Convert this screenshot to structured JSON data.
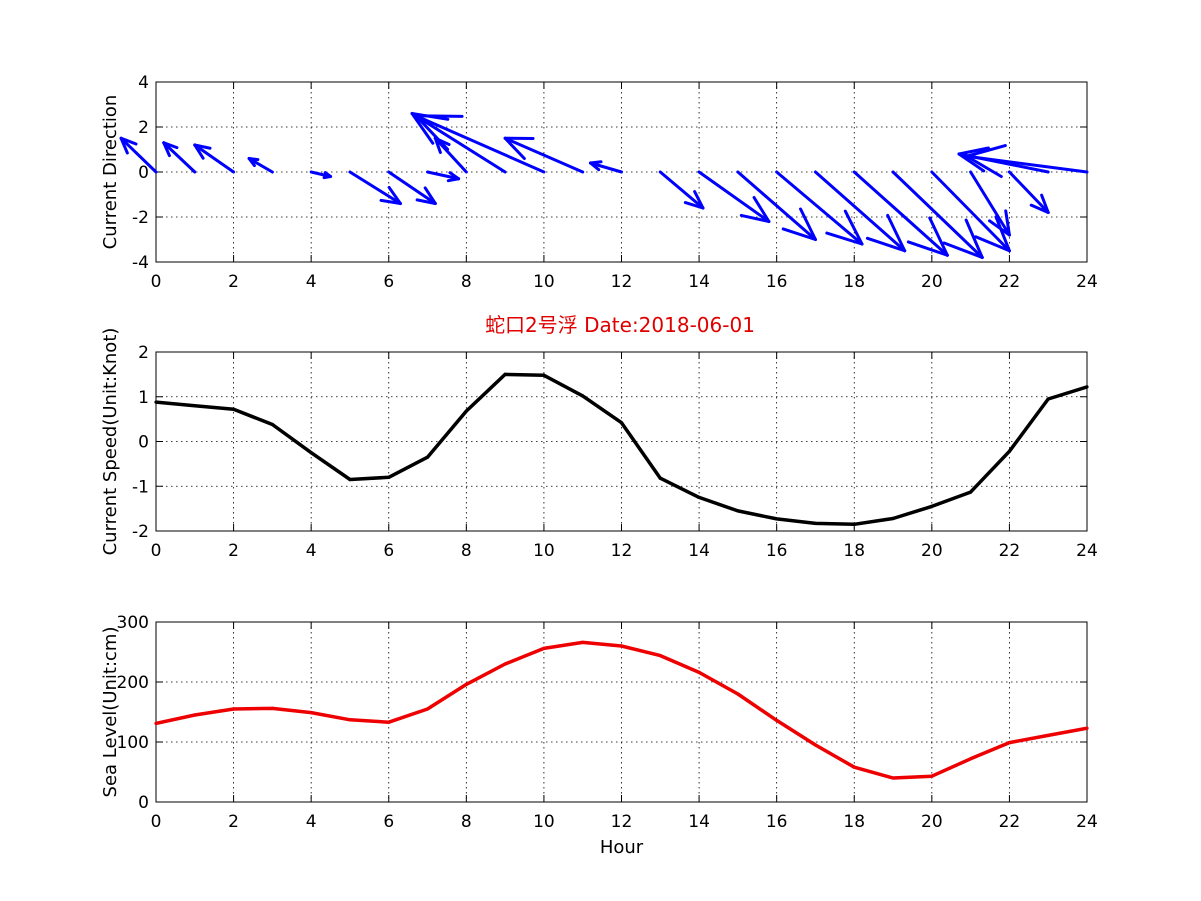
{
  "figure": {
    "title": "蛇口2号浮   Date:2018-06-01",
    "title_color": "#e00000"
  },
  "chart_data": [
    {
      "type": "quiver",
      "name": "current-direction",
      "ylabel": "Current Direction",
      "xlabel": "",
      "xlim": [
        0,
        24
      ],
      "ylim": [
        -4,
        4
      ],
      "xticks": [
        0,
        2,
        4,
        6,
        8,
        10,
        12,
        14,
        16,
        18,
        20,
        22,
        24
      ],
      "yticks": [
        -4,
        -2,
        0,
        2,
        4
      ],
      "grid": true,
      "color": "#0000ff",
      "arrows": [
        {
          "x": 0,
          "u": -0.9,
          "v": 1.5
        },
        {
          "x": 1,
          "u": -0.8,
          "v": 1.3
        },
        {
          "x": 2,
          "u": -1.0,
          "v": 1.2
        },
        {
          "x": 3,
          "u": -0.6,
          "v": 0.6
        },
        {
          "x": 4,
          "u": 0.5,
          "v": -0.2
        },
        {
          "x": 5,
          "u": 1.3,
          "v": -1.4
        },
        {
          "x": 6,
          "u": 1.2,
          "v": -1.4
        },
        {
          "x": 7,
          "u": 0.8,
          "v": -0.3
        },
        {
          "x": 8,
          "u": -0.8,
          "v": 1.5
        },
        {
          "x": 9,
          "u": -2.4,
          "v": 2.6
        },
        {
          "x": 10,
          "u": -3.3,
          "v": 2.5
        },
        {
          "x": 11,
          "u": -2.0,
          "v": 1.5
        },
        {
          "x": 12,
          "u": -0.8,
          "v": 0.4
        },
        {
          "x": 13,
          "u": 1.1,
          "v": -1.6
        },
        {
          "x": 14,
          "u": 1.8,
          "v": -2.2
        },
        {
          "x": 15,
          "u": 2.0,
          "v": -3.0
        },
        {
          "x": 16,
          "u": 2.2,
          "v": -3.2
        },
        {
          "x": 17,
          "u": 2.3,
          "v": -3.5
        },
        {
          "x": 18,
          "u": 2.4,
          "v": -3.7
        },
        {
          "x": 19,
          "u": 2.3,
          "v": -3.8
        },
        {
          "x": 20,
          "u": 2.0,
          "v": -3.5
        },
        {
          "x": 21,
          "u": 1.0,
          "v": -2.8
        },
        {
          "x": 22,
          "u": 1.0,
          "v": -1.8
        },
        {
          "x": 23,
          "u": -2.3,
          "v": 0.8
        },
        {
          "x": 24,
          "u": -3.1,
          "v": 0.7
        }
      ]
    },
    {
      "type": "line",
      "name": "current-speed",
      "ylabel": "Current Speed(Unit:Knot)",
      "xlabel": "",
      "xlim": [
        0,
        24
      ],
      "ylim": [
        -2,
        2
      ],
      "xticks": [
        0,
        2,
        4,
        6,
        8,
        10,
        12,
        14,
        16,
        18,
        20,
        22,
        24
      ],
      "yticks": [
        -2,
        -1,
        0,
        1,
        2
      ],
      "grid": true,
      "color": "#000000",
      "x": [
        0,
        1,
        2,
        3,
        4,
        5,
        6,
        7,
        8,
        9,
        10,
        11,
        12,
        13,
        14,
        15,
        16,
        17,
        18,
        19,
        20,
        21,
        22,
        23,
        24
      ],
      "y": [
        0.88,
        0.8,
        0.72,
        0.38,
        -0.25,
        -0.85,
        -0.8,
        -0.35,
        0.68,
        1.5,
        1.48,
        1.02,
        0.42,
        -0.82,
        -1.25,
        -1.55,
        -1.73,
        -1.83,
        -1.85,
        -1.72,
        -1.45,
        -1.13,
        -0.22,
        0.95,
        1.22
      ]
    },
    {
      "type": "line",
      "name": "sea-level",
      "ylabel": "Sea Level(Unit:cm)",
      "xlabel": "Hour",
      "xlim": [
        0,
        24
      ],
      "ylim": [
        0,
        300
      ],
      "xticks": [
        0,
        2,
        4,
        6,
        8,
        10,
        12,
        14,
        16,
        18,
        20,
        22,
        24
      ],
      "yticks": [
        0,
        100,
        200,
        300
      ],
      "grid": true,
      "color": "#ee0000",
      "x": [
        0,
        1,
        2,
        3,
        4,
        5,
        6,
        7,
        8,
        9,
        10,
        11,
        12,
        13,
        14,
        15,
        16,
        17,
        18,
        19,
        20,
        21,
        22,
        23,
        24
      ],
      "y": [
        131,
        145,
        155,
        156,
        149,
        137,
        133,
        155,
        196,
        230,
        256,
        266,
        260,
        244,
        216,
        180,
        136,
        95,
        58,
        40,
        43,
        72,
        99,
        111,
        123
      ]
    }
  ]
}
